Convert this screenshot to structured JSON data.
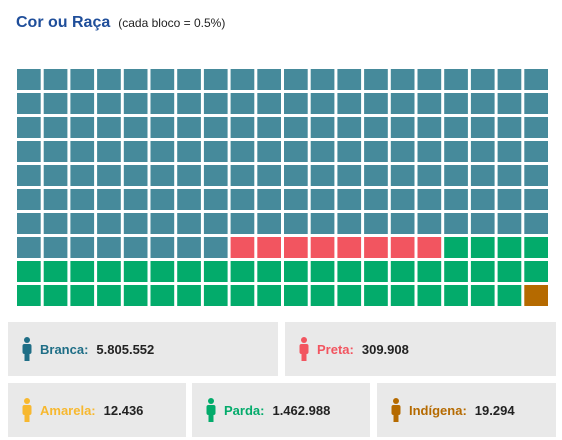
{
  "header": {
    "title": "Cor ou Raça",
    "subtitle": "(cada bloco = 0.5%)"
  },
  "chart_data": {
    "type": "waffle",
    "unit_percent": 0.5,
    "grid": {
      "rows": 10,
      "cols": 20
    },
    "fill_order": "row-major, top-left first",
    "categories": [
      {
        "key": "branca",
        "label": "Branca:",
        "value": "5.805.552",
        "blocks": 148,
        "color": "#468a9b",
        "label_color": "#1f6e86"
      },
      {
        "key": "preta",
        "label": "Preta:",
        "value": "309.908",
        "blocks": 8,
        "color": "#f25560",
        "label_color": "#f25560"
      },
      {
        "key": "parda",
        "label": "Parda:",
        "value": "1.462.988",
        "blocks": 43,
        "color": "#03ab6b",
        "label_color": "#03ab6b"
      },
      {
        "key": "indigena",
        "label": "Indígena:",
        "value": "19.294",
        "blocks": 1,
        "color": "#b56a00",
        "label_color": "#b56a00"
      },
      {
        "key": "amarela",
        "label": "Amarela:",
        "value": "12.436",
        "blocks": 0,
        "color": "#f7b82f",
        "label_color": "#f7b82f"
      }
    ]
  },
  "legend": {
    "branca": {
      "label": "Branca:",
      "value": "5.805.552",
      "color": "#1f6e86",
      "icon": "person-icon"
    },
    "preta": {
      "label": "Preta:",
      "value": "309.908",
      "color": "#f25560",
      "icon": "person-icon"
    },
    "amarela": {
      "label": "Amarela:",
      "value": "12.436",
      "color": "#f7b82f",
      "icon": "person-icon"
    },
    "parda": {
      "label": "Parda:",
      "value": "1.462.988",
      "color": "#03ab6b",
      "icon": "person-icon"
    },
    "indigena": {
      "label": "Indígena:",
      "value": "19.294",
      "color": "#b56a00",
      "icon": "person-icon"
    }
  }
}
